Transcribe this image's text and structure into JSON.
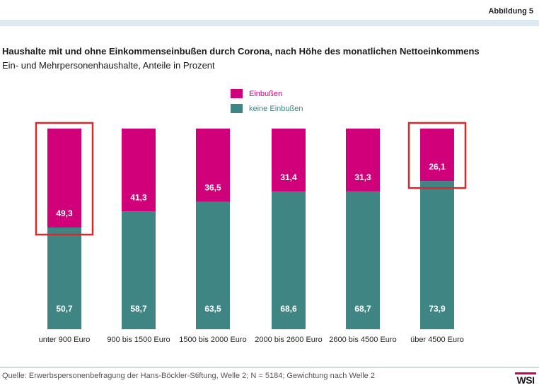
{
  "figure_label": "Abbildung 5",
  "source_text": "Quelle: Erwerbspersonenbefragung der Hans-Böckler-Stiftung, Welle 2; N = 5184; Gewichtung nach Welle 2",
  "logo_text": "WSI",
  "colors": {
    "einbussen": "#d0007a",
    "keine_einbussen": "#3e8584",
    "highlight": "#d9272e",
    "value_label": "#ffffff"
  },
  "chart_data": {
    "type": "bar",
    "stacked": true,
    "orientation": "vertical",
    "title": "Haushalte mit und ohne Einkommenseinbußen durch Corona, nach Höhe des monatlichen Nettoeinkommens",
    "subtitle": "Ein- und Mehrpersonenhaushalte, Anteile in Prozent",
    "categories": [
      "unter 900 Euro",
      "900 bis 1500 Euro",
      "1500 bis 2000 Euro",
      "2000 bis 2600 Euro",
      "2600 bis 4500 Euro",
      "über 4500 Euro"
    ],
    "series": [
      {
        "name": "keine Einbußen",
        "values": [
          50.7,
          58.7,
          63.5,
          68.6,
          68.7,
          73.9
        ],
        "labels": [
          "50,7",
          "58,7",
          "63,5",
          "68,6",
          "68,7",
          "73,9"
        ]
      },
      {
        "name": "Einbußen",
        "values": [
          49.3,
          41.3,
          36.5,
          31.4,
          31.3,
          26.1
        ],
        "labels": [
          "49,3",
          "41,3",
          "36,5",
          "31,4",
          "31,3",
          "26,1"
        ]
      }
    ],
    "ylim": [
      0,
      100
    ],
    "grid": false,
    "legend_position": "top-center",
    "highlighted_categories": [
      "unter 900 Euro",
      "über 4500 Euro"
    ]
  }
}
